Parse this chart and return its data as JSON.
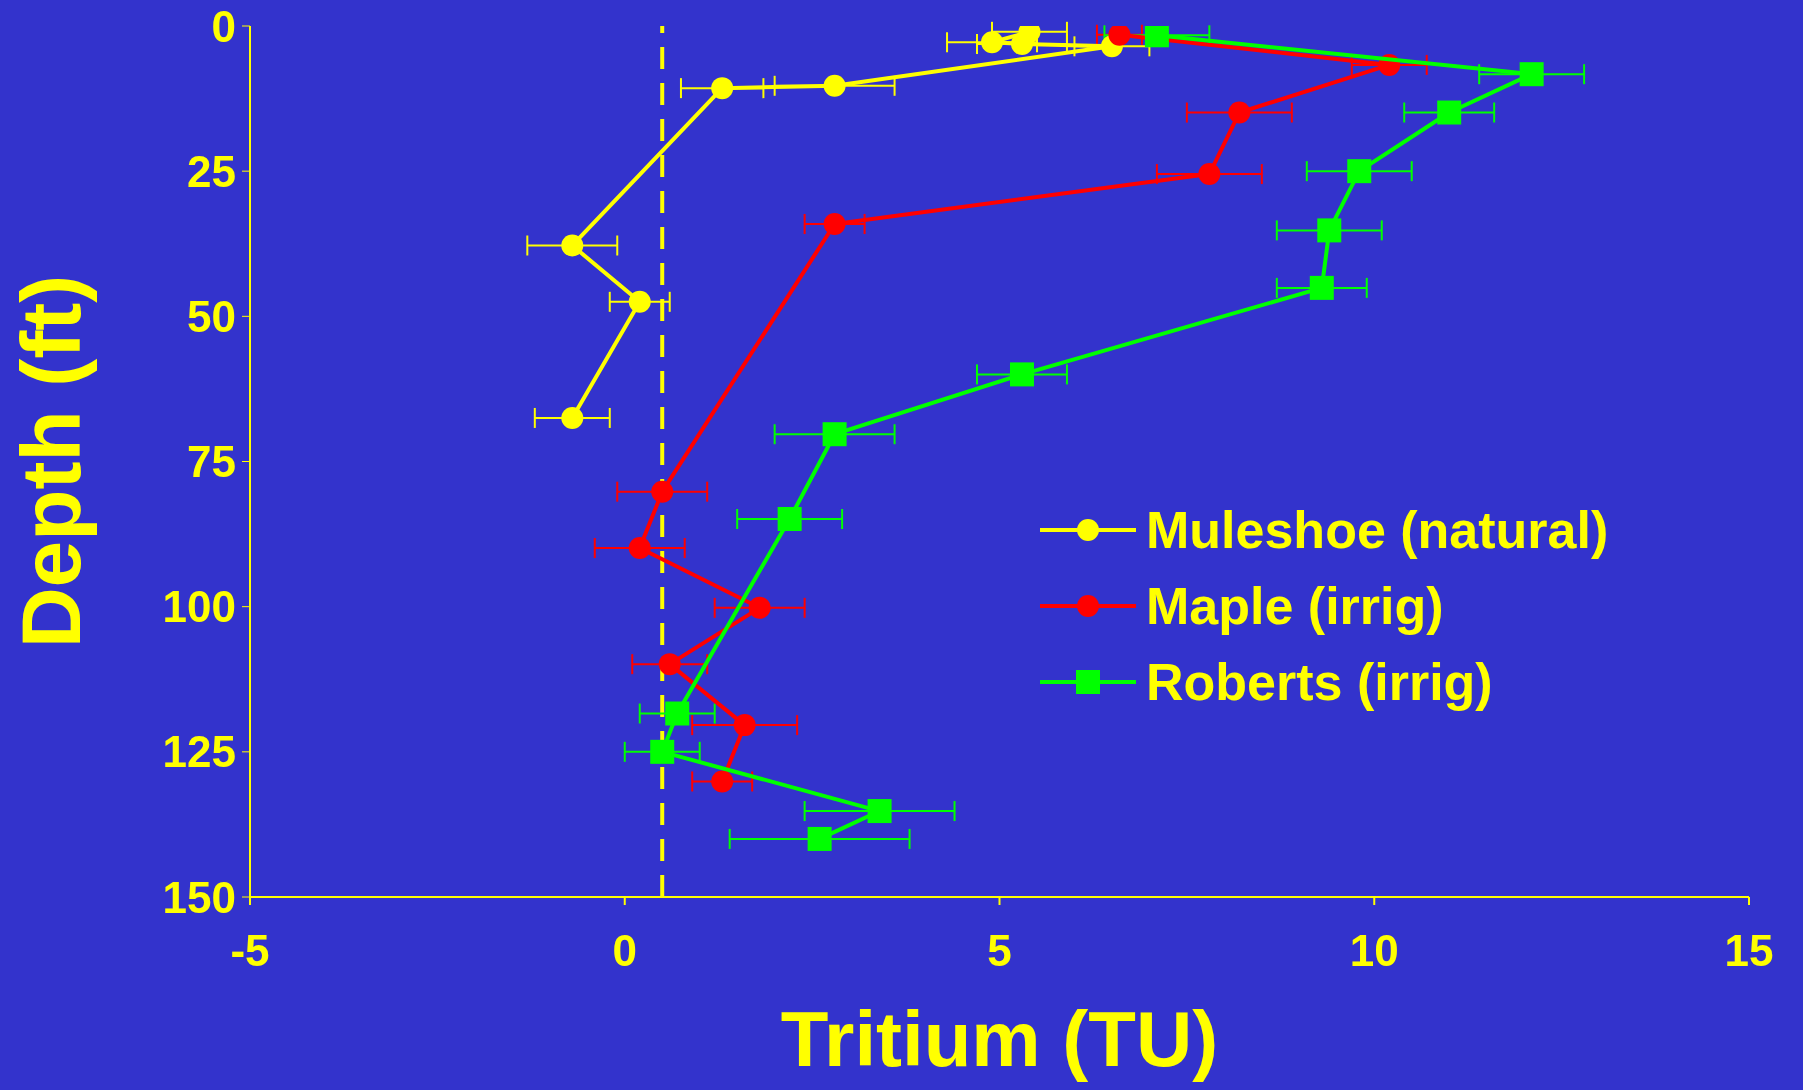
{
  "chart_data": {
    "type": "line",
    "xlabel": "Tritium (TU)",
    "ylabel": "Depth (ft)",
    "xlim": [
      -5,
      15
    ],
    "xticks": [
      -5,
      0,
      5,
      10,
      15
    ],
    "ylim": [
      150,
      0
    ],
    "yticks": [
      0,
      25,
      50,
      75,
      100,
      125,
      150
    ],
    "legend": "right",
    "ref_lines": [
      {
        "axis": "x",
        "value": 0.5,
        "color": "#ffff00",
        "line_style": "dashed"
      }
    ],
    "series": [
      {
        "name": "Muleshoe (natural)",
        "color": "#ffff00",
        "marker": "circle",
        "x": [
          5.4,
          4.9,
          5.3,
          6.5,
          2.8,
          1.3,
          -0.7,
          0.2,
          -0.7
        ],
        "values": [
          1,
          2.8,
          3.1,
          3.5,
          10.3,
          10.7,
          37.8,
          47.5,
          67.5
        ],
        "xerrors": [
          0.5,
          0.6,
          0.6,
          0.5,
          0.8,
          0.55,
          0.6,
          0.4,
          0.5
        ]
      },
      {
        "name": "Maple (irrig)",
        "color": "#ff0000",
        "marker": "circle",
        "x": [
          6.6,
          10.2,
          8.2,
          7.8,
          2.8,
          0.5,
          0.2,
          1.8,
          0.6,
          1.6,
          1.3
        ],
        "values": [
          1.5,
          6.7,
          14.9,
          25.5,
          34.1,
          80.2,
          89.9,
          100.2,
          109.9,
          120.4,
          130.1
        ],
        "xerrors": [
          0.3,
          0.5,
          0.7,
          0.7,
          0.4,
          0.6,
          0.6,
          0.6,
          0.5,
          0.7,
          0.4
        ]
      },
      {
        "name": "Roberts (irrig)",
        "color": "#00ff00",
        "marker": "square",
        "x": [
          7.1,
          12.1,
          11.0,
          9.8,
          9.4,
          9.3,
          5.3,
          2.8,
          2.2,
          0.7,
          0.5,
          3.4,
          2.6
        ],
        "values": [
          1.6,
          8.3,
          14.9,
          25,
          35.2,
          45.1,
          60,
          70.3,
          84.9,
          118.4,
          125,
          135.2,
          140
        ],
        "xerrors": [
          0.7,
          0.7,
          0.6,
          0.7,
          0.7,
          0.6,
          0.6,
          0.8,
          0.7,
          0.5,
          0.5,
          1.0,
          1.2
        ]
      }
    ]
  }
}
